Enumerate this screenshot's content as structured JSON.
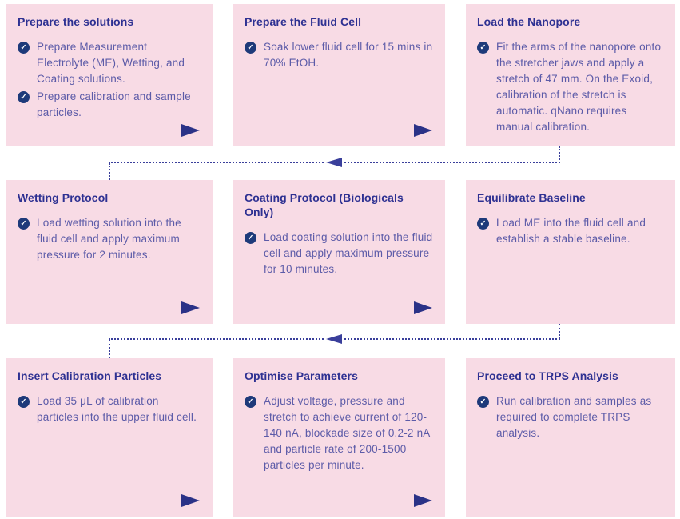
{
  "diagram": {
    "type": "process-flowchart",
    "subject": "TRPS (Tunable Resistive Pulse Sensing) measurement protocol",
    "flow_order": "left-to-right per row, dotted arrow connectors wrap from end of each row down to start of next row"
  },
  "colors": {
    "card_background": "#f8dbe5",
    "title_text": "#2e3192",
    "body_text": "#5c5ba8",
    "check_circle": "#1e3a7a",
    "play_arrow": "#2b3287",
    "connector_line": "#3a3f9b",
    "page_background": "#ffffff"
  },
  "icons": {
    "check_glyph": "✓"
  },
  "cards": [
    {
      "title": "Prepare the solutions",
      "items": [
        "Prepare Measurement Electrolyte (ME), Wetting, and Coating solutions.",
        "Prepare calibration and sample particles."
      ],
      "has_play_arrow": true
    },
    {
      "title": "Prepare the Fluid Cell",
      "items": [
        "Soak lower fluid cell for 15 mins in 70% EtOH."
      ],
      "has_play_arrow": true
    },
    {
      "title": "Load the Nanopore",
      "items": [
        "Fit the arms of the nanopore onto the stretcher jaws and apply a stretch of 47 mm. On the Exoid, calibration of the stretch is automatic. qNano requires manual calibration."
      ],
      "has_play_arrow": false
    },
    {
      "title": "Wetting Protocol",
      "items": [
        "Load wetting solution into the fluid cell and apply maximum pressure for 2 minutes."
      ],
      "has_play_arrow": true
    },
    {
      "title": "Coating Protocol (Biologicals Only)",
      "items": [
        "Load coating solution into the fluid cell and apply maximum pressure for 10 minutes."
      ],
      "has_play_arrow": true
    },
    {
      "title": "Equilibrate Baseline",
      "items": [
        "Load ME into the fluid cell and establish a stable baseline."
      ],
      "has_play_arrow": false
    },
    {
      "title": "Insert Calibration Particles",
      "items": [
        "Load 35 μL of calibration particles into the upper fluid cell."
      ],
      "has_play_arrow": true
    },
    {
      "title": "Optimise Parameters",
      "items": [
        "Adjust voltage, pressure and stretch to achieve current of 120-140 nA, blockade size of 0.2-2 nA and particle rate of 200-1500 particles per minute."
      ],
      "has_play_arrow": true
    },
    {
      "title": "Proceed to TRPS Analysis",
      "items": [
        "Run calibration and samples as required to complete TRPS analysis."
      ],
      "has_play_arrow": false
    }
  ]
}
